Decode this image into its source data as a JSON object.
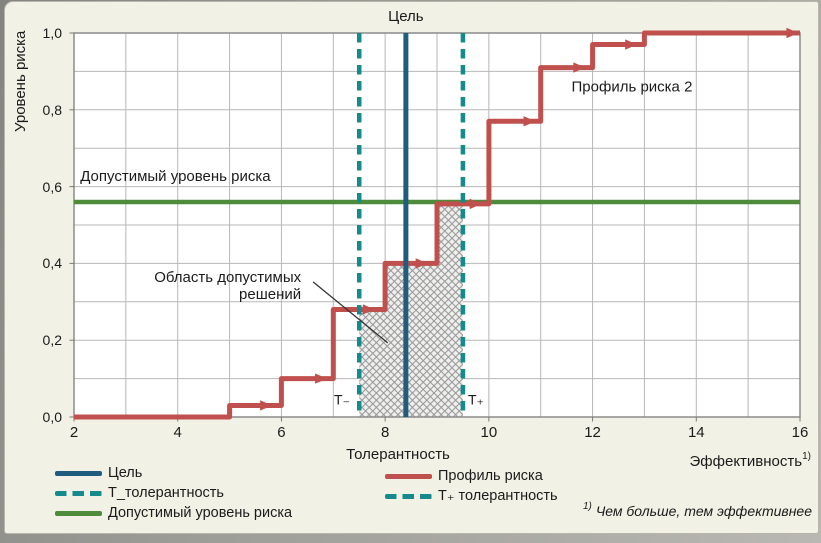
{
  "card": {
    "background": "#F2F1E5",
    "edge": "#90908C"
  },
  "chart_data": {
    "type": "line",
    "x_axis": {
      "label": "Толерантность",
      "secondary_label": "Эффективность",
      "secondary_label_sup": "1)",
      "min": 2,
      "max": 16,
      "grid_step": 1,
      "ticks": [
        {
          "v": 2,
          "label": "2"
        },
        {
          "v": 4,
          "label": "4"
        },
        {
          "v": 6,
          "label": "6"
        },
        {
          "v": 8,
          "label": "8"
        },
        {
          "v": 10,
          "label": "10"
        },
        {
          "v": 12,
          "label": "12"
        },
        {
          "v": 14,
          "label": "14"
        },
        {
          "v": 16,
          "label": "16"
        }
      ]
    },
    "y_axis": {
      "label": "Уровень риска",
      "min": 0,
      "max": 1,
      "grid_step": 0.1,
      "ticks": [
        {
          "v": 0,
          "label": "0,0"
        },
        {
          "v": 0.2,
          "label": "0,2"
        },
        {
          "v": 0.4,
          "label": "0,4"
        },
        {
          "v": 0.6,
          "label": "0,6"
        },
        {
          "v": 0.8,
          "label": "0,8"
        },
        {
          "v": 1,
          "label": "1,0"
        }
      ]
    },
    "series": [
      {
        "name": "Профиль риска 2",
        "type": "step",
        "color": "#C0504D",
        "points": [
          [
            2,
            0
          ],
          [
            5,
            0
          ],
          [
            5,
            0.03
          ],
          [
            6,
            0.03
          ],
          [
            6,
            0.1
          ],
          [
            7,
            0.1
          ],
          [
            7,
            0.28
          ],
          [
            8,
            0.28
          ],
          [
            8,
            0.4
          ],
          [
            9,
            0.4
          ],
          [
            9,
            0.555
          ],
          [
            10,
            0.555
          ],
          [
            10,
            0.77
          ],
          [
            11,
            0.77
          ],
          [
            11,
            0.91
          ],
          [
            12,
            0.91
          ],
          [
            12,
            0.97
          ],
          [
            13,
            0.97
          ],
          [
            13,
            1.0
          ],
          [
            16,
            1.0
          ]
        ],
        "arrows": [
          [
            5.82,
            0.03
          ],
          [
            6.88,
            0.1
          ],
          [
            7.8,
            0.28
          ],
          [
            8.82,
            0.4
          ],
          [
            9.86,
            0.555
          ],
          [
            10.9,
            0.77
          ],
          [
            11.86,
            0.91
          ],
          [
            12.86,
            0.97
          ],
          [
            15.97,
            1.0
          ]
        ]
      }
    ],
    "reference_lines": {
      "goal": {
        "label": "Цель",
        "x": 8.4,
        "color": "#1F5C7D",
        "style": "solid"
      },
      "t_minus": {
        "label": "Т₋",
        "x": 7.5,
        "color": "#148A8D",
        "style": "dashed"
      },
      "t_plus": {
        "label": "Т₊",
        "x": 9.5,
        "color": "#148A8D",
        "style": "dashed"
      },
      "acceptable_risk": {
        "label": "Допустимый уровень риска",
        "y": 0.56,
        "color": "#4E8C3C",
        "style": "solid"
      }
    },
    "hatch_region": {
      "x_from": 7.5,
      "x_to": 9.5,
      "y_from": 0,
      "top_steps": [
        [
          8,
          0.28
        ],
        [
          9,
          0.4
        ],
        [
          9.5,
          0.56
        ]
      ]
    },
    "annotations": {
      "region": {
        "lines": [
          "Область допустимых",
          "решений"
        ],
        "x": 6.38,
        "y": 0.34,
        "align": "right"
      },
      "leader_line": {
        "x1": 6.61,
        "y1": 0.352,
        "x2": 8.05,
        "y2": 0.193
      },
      "series_label_pos": {
        "x": 12.76,
        "y": 0.86
      },
      "acceptable_label_pos": {
        "x": 2.12,
        "y": 0.605
      },
      "t_label_y": 0.044,
      "t_minus_label_x": 7.38,
      "t_plus_label_x": 9.54
    },
    "legend": {
      "left": [
        {
          "label": "Цель",
          "color": "#1F5C7D",
          "style": "solid"
        },
        {
          "label": "Т_толерантность",
          "color": "#148A8D",
          "style": "dashed"
        },
        {
          "label": "Допустимый уровень риска",
          "color": "#4E8C3C",
          "style": "solid"
        }
      ],
      "right": [
        {
          "label": "Профиль риска",
          "color": "#C0504D",
          "style": "solid"
        },
        {
          "label": "Т₊ толерантность",
          "color": "#148A8D",
          "style": "dashed"
        }
      ]
    },
    "footnote": {
      "sup": "1)",
      "text": "Чем больше, тем эффективнее"
    },
    "grid_color": "#B7B7B7",
    "border_color": "#8A8A8A",
    "axis_tick_color": "#7A7A7A",
    "hatch": {
      "bg": "#F0F0EA",
      "line": "#93939B"
    },
    "leader_color": "#333333"
  }
}
